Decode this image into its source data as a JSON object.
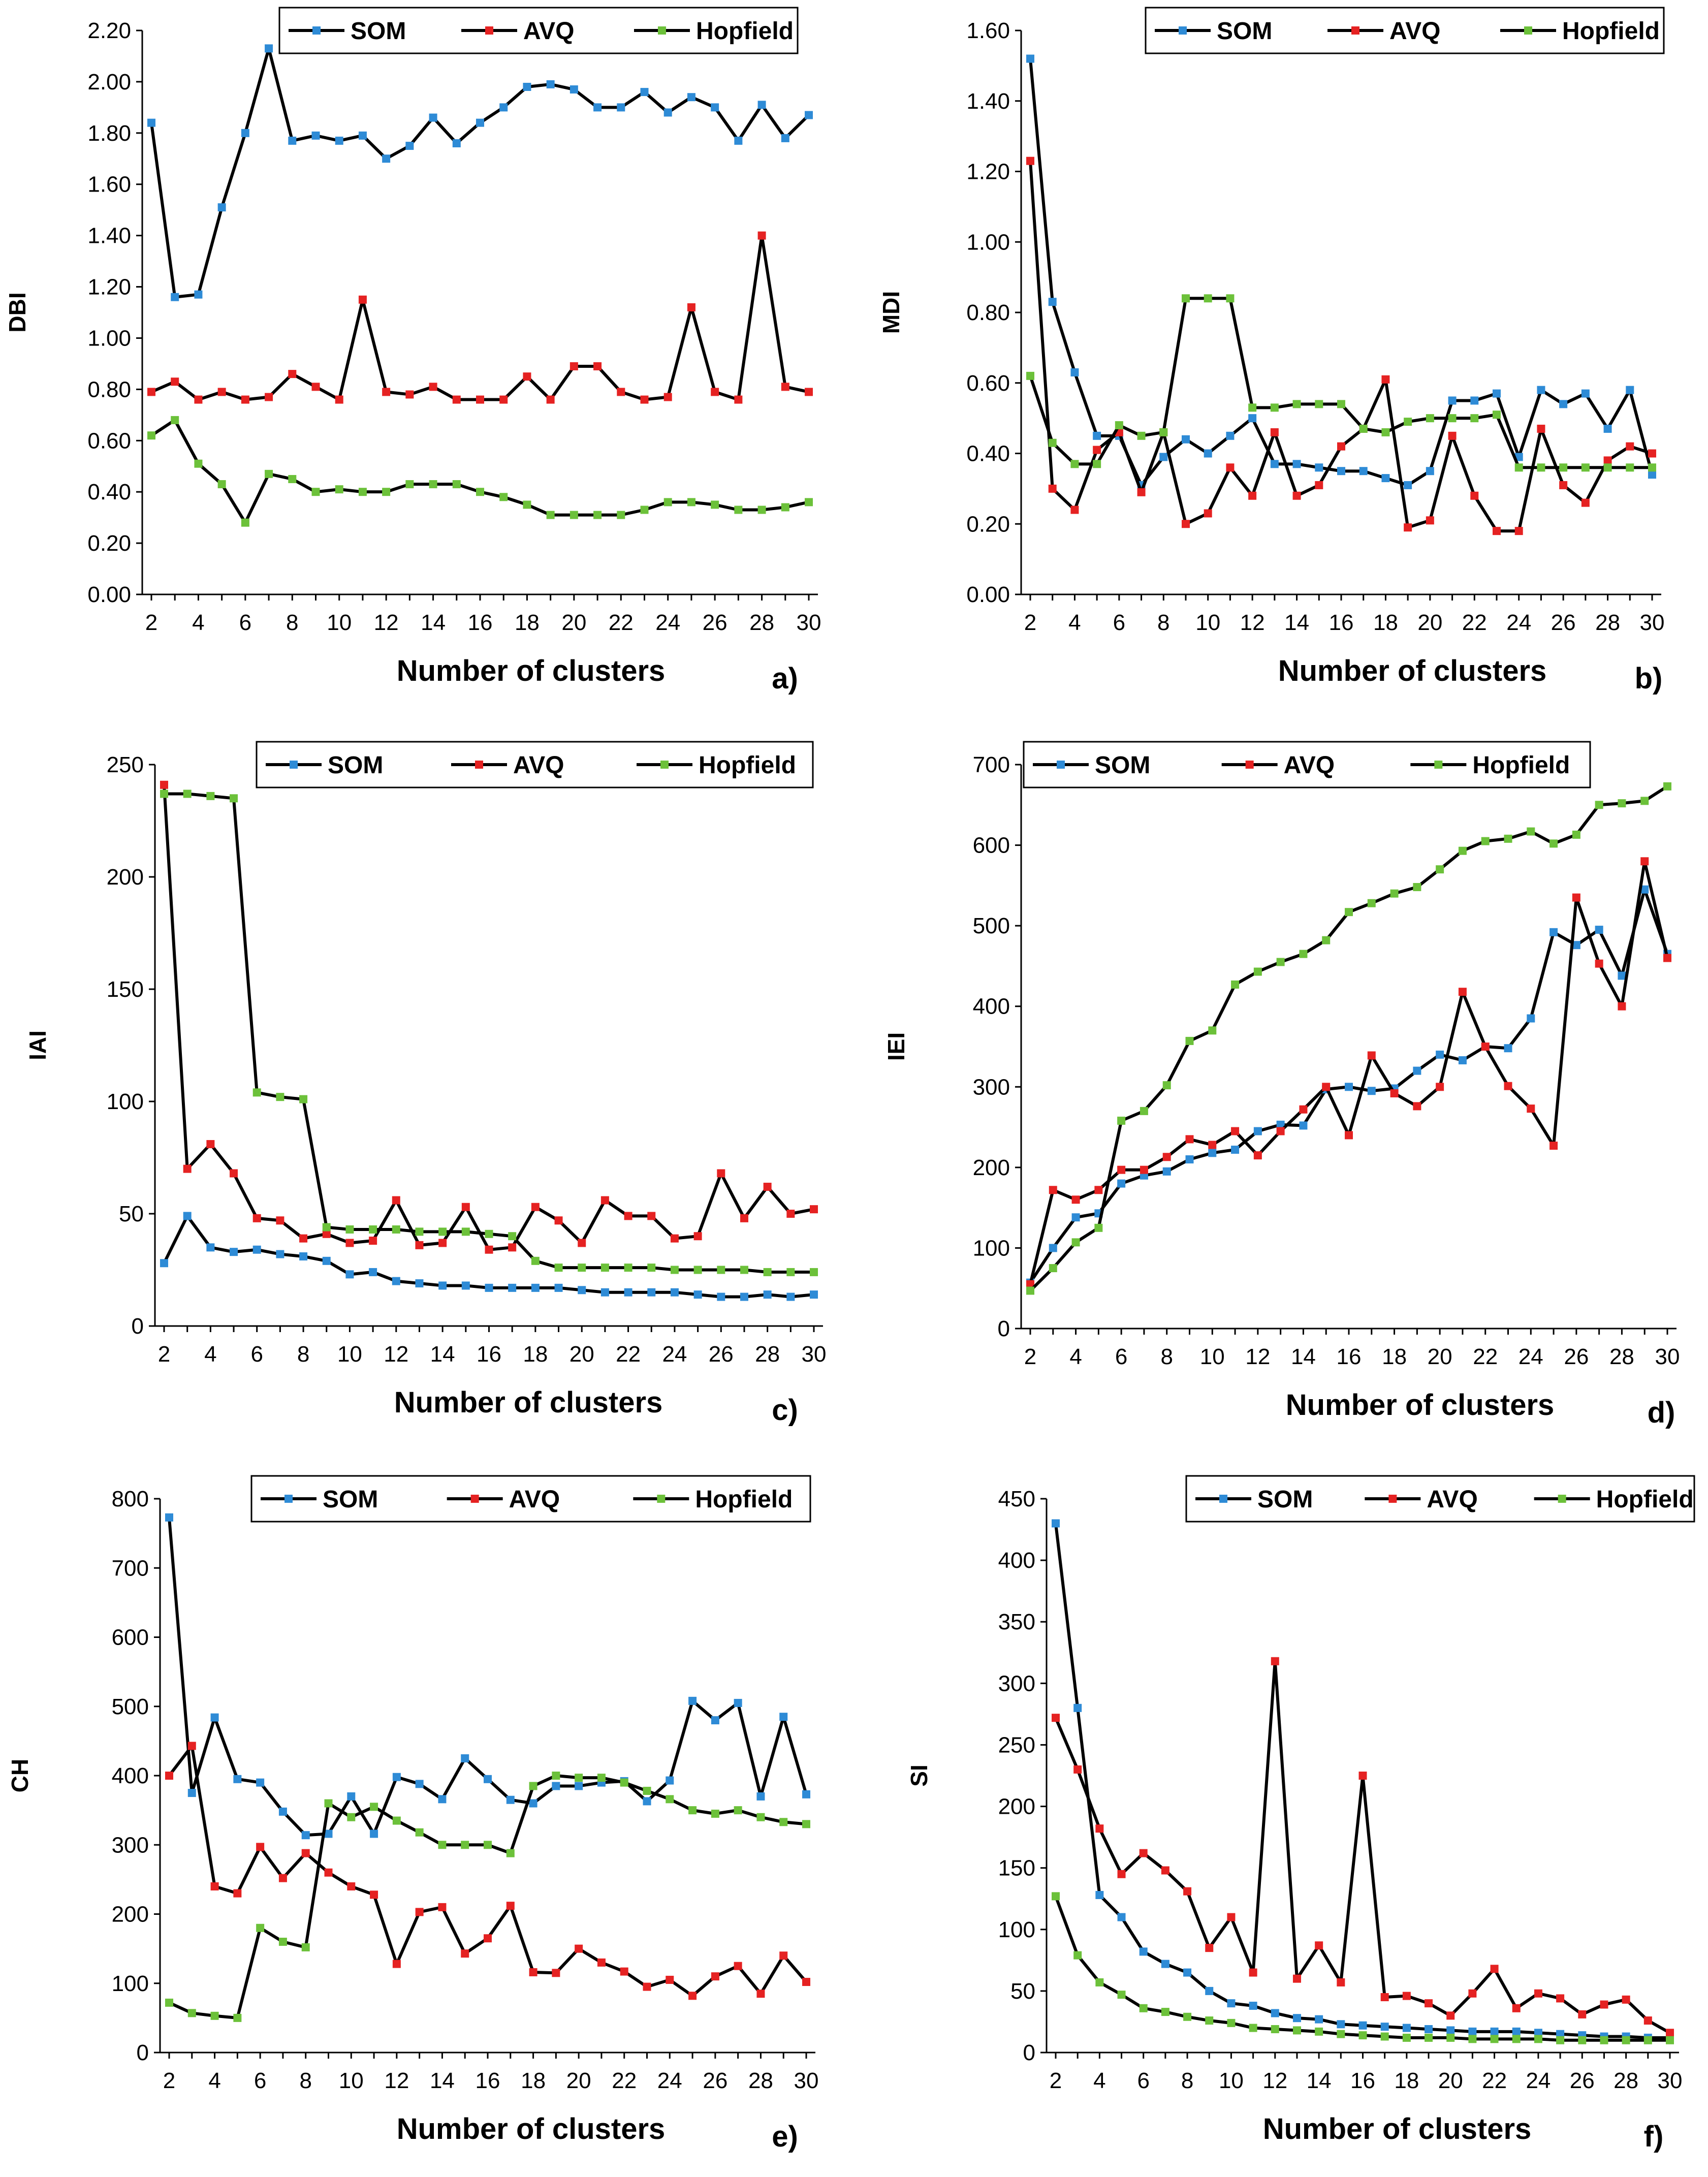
{
  "colors": {
    "line": "#000000",
    "SOM": "#2e8bd6",
    "AVQ": "#e52222",
    "Hopfield": "#6cc13a"
  },
  "chart_data": [
    {
      "type": "line",
      "panel_label": "a)",
      "ylabel": "DBI",
      "xlabel": "Number of clusters",
      "x": [
        2,
        3,
        4,
        5,
        6,
        7,
        8,
        9,
        10,
        11,
        12,
        13,
        14,
        15,
        16,
        17,
        18,
        19,
        20,
        21,
        22,
        23,
        24,
        25,
        26,
        27,
        28,
        29,
        30
      ],
      "xticks": [
        2,
        4,
        6,
        8,
        10,
        12,
        14,
        16,
        18,
        20,
        22,
        24,
        26,
        28,
        30
      ],
      "ylim": [
        0,
        2.2
      ],
      "yticks": [
        "0.00",
        "0.20",
        "0.40",
        "0.60",
        "0.80",
        "1.00",
        "1.20",
        "1.40",
        "1.60",
        "1.80",
        "2.00",
        "2.20"
      ],
      "legend": "top",
      "series": [
        {
          "name": "SOM",
          "values": [
            1.84,
            1.16,
            1.17,
            1.51,
            1.8,
            2.13,
            1.77,
            1.79,
            1.77,
            1.79,
            1.7,
            1.75,
            1.86,
            1.76,
            1.84,
            1.9,
            1.98,
            1.99,
            1.97,
            1.9,
            1.9,
            1.96,
            1.88,
            1.94,
            1.9,
            1.77,
            1.91,
            1.78,
            1.87
          ]
        },
        {
          "name": "AVQ",
          "values": [
            0.79,
            0.83,
            0.76,
            0.79,
            0.76,
            0.77,
            0.86,
            0.81,
            0.76,
            1.15,
            0.79,
            0.78,
            0.81,
            0.76,
            0.76,
            0.76,
            0.85,
            0.76,
            0.89,
            0.89,
            0.79,
            0.76,
            0.77,
            1.12,
            0.79,
            0.76,
            1.4,
            0.81,
            0.79
          ]
        },
        {
          "name": "Hopfield",
          "values": [
            0.62,
            0.68,
            0.51,
            0.43,
            0.28,
            0.47,
            0.45,
            0.4,
            0.41,
            0.4,
            0.4,
            0.43,
            0.43,
            0.43,
            0.4,
            0.38,
            0.35,
            0.31,
            0.31,
            0.31,
            0.31,
            0.33,
            0.36,
            0.36,
            0.35,
            0.33,
            0.33,
            0.34,
            0.36
          ]
        }
      ]
    },
    {
      "type": "line",
      "panel_label": "b)",
      "ylabel": "MDI",
      "xlabel": "Number of clusters",
      "x": [
        2,
        3,
        4,
        5,
        6,
        7,
        8,
        9,
        10,
        11,
        12,
        13,
        14,
        15,
        16,
        17,
        18,
        19,
        20,
        21,
        22,
        23,
        24,
        25,
        26,
        27,
        28,
        29,
        30
      ],
      "xticks": [
        2,
        4,
        6,
        8,
        10,
        12,
        14,
        16,
        18,
        20,
        22,
        24,
        26,
        28,
        30
      ],
      "ylim": [
        0,
        1.6
      ],
      "yticks": [
        "0.00",
        "0.20",
        "0.40",
        "0.60",
        "0.80",
        "1.00",
        "1.20",
        "1.40",
        "1.60"
      ],
      "legend": "top-right",
      "series": [
        {
          "name": "SOM",
          "values": [
            1.52,
            0.83,
            0.63,
            0.45,
            0.45,
            0.31,
            0.39,
            0.44,
            0.4,
            0.45,
            0.5,
            0.37,
            0.37,
            0.36,
            0.35,
            0.35,
            0.33,
            0.31,
            0.35,
            0.55,
            0.55,
            0.57,
            0.39,
            0.58,
            0.54,
            0.57,
            0.47,
            0.58,
            0.34
          ]
        },
        {
          "name": "AVQ",
          "values": [
            1.23,
            0.3,
            0.24,
            0.41,
            0.46,
            0.29,
            0.46,
            0.2,
            0.23,
            0.36,
            0.28,
            0.46,
            0.28,
            0.31,
            0.42,
            0.47,
            0.61,
            0.19,
            0.21,
            0.45,
            0.28,
            0.18,
            0.18,
            0.47,
            0.31,
            0.26,
            0.38,
            0.42,
            0.4
          ]
        },
        {
          "name": "Hopfield",
          "values": [
            0.62,
            0.43,
            0.37,
            0.37,
            0.48,
            0.45,
            0.46,
            0.84,
            0.84,
            0.84,
            0.53,
            0.53,
            0.54,
            0.54,
            0.54,
            0.47,
            0.46,
            0.49,
            0.5,
            0.5,
            0.5,
            0.51,
            0.36,
            0.36,
            0.36,
            0.36,
            0.36,
            0.36,
            0.36
          ]
        }
      ]
    },
    {
      "type": "line",
      "panel_label": "c)",
      "ylabel": "IAI",
      "xlabel": "Number of clusters",
      "x": [
        2,
        3,
        4,
        5,
        6,
        7,
        8,
        9,
        10,
        11,
        12,
        13,
        14,
        15,
        16,
        17,
        18,
        19,
        20,
        21,
        22,
        23,
        24,
        25,
        26,
        27,
        28,
        29,
        30
      ],
      "xticks": [
        2,
        4,
        6,
        8,
        10,
        12,
        14,
        16,
        18,
        20,
        22,
        24,
        26,
        28,
        30
      ],
      "ylim": [
        0,
        250
      ],
      "yticks": [
        "0",
        "50",
        "100",
        "150",
        "200",
        "250"
      ],
      "legend": "top-right",
      "series": [
        {
          "name": "SOM",
          "values": [
            28,
            49,
            35,
            33,
            34,
            32,
            31,
            29,
            23,
            24,
            20,
            19,
            18,
            18,
            17,
            17,
            17,
            17,
            16,
            15,
            15,
            15,
            15,
            14,
            13,
            13,
            14,
            13,
            14
          ]
        },
        {
          "name": "AVQ",
          "values": [
            241,
            70,
            81,
            68,
            48,
            47,
            39,
            41,
            37,
            38,
            56,
            36,
            37,
            53,
            34,
            35,
            53,
            47,
            37,
            56,
            49,
            49,
            39,
            40,
            68,
            48,
            62,
            50,
            52
          ]
        },
        {
          "name": "Hopfield",
          "values": [
            237,
            237,
            236,
            235,
            104,
            102,
            101,
            44,
            43,
            43,
            43,
            42,
            42,
            42,
            41,
            40,
            29,
            26,
            26,
            26,
            26,
            26,
            25,
            25,
            25,
            25,
            24,
            24,
            24
          ]
        }
      ]
    },
    {
      "type": "line",
      "panel_label": "d)",
      "ylabel": "IEI",
      "xlabel": "Number of clusters",
      "x": [
        2,
        3,
        4,
        5,
        6,
        7,
        8,
        9,
        10,
        11,
        12,
        13,
        14,
        15,
        16,
        17,
        18,
        19,
        20,
        21,
        22,
        23,
        24,
        25,
        26,
        27,
        28,
        29,
        30
      ],
      "xticks": [
        2,
        4,
        6,
        8,
        10,
        12,
        14,
        16,
        18,
        20,
        22,
        24,
        26,
        28,
        30
      ],
      "ylim": [
        0,
        700
      ],
      "yticks": [
        "0",
        "100",
        "200",
        "300",
        "400",
        "500",
        "600",
        "700"
      ],
      "legend": "top",
      "series": [
        {
          "name": "SOM",
          "values": [
            57,
            100,
            138,
            143,
            180,
            190,
            195,
            210,
            218,
            222,
            245,
            253,
            252,
            297,
            300,
            295,
            298,
            320,
            340,
            333,
            350,
            348,
            385,
            492,
            476,
            495,
            438,
            545,
            465
          ]
        },
        {
          "name": "AVQ",
          "values": [
            55,
            172,
            160,
            172,
            197,
            197,
            213,
            235,
            228,
            245,
            215,
            245,
            272,
            300,
            240,
            339,
            292,
            276,
            300,
            418,
            350,
            301,
            273,
            227,
            535,
            453,
            400,
            580,
            460
          ]
        },
        {
          "name": "Hopfield",
          "values": [
            47,
            75,
            107,
            125,
            258,
            270,
            302,
            357,
            370,
            427,
            443,
            455,
            465,
            482,
            517,
            528,
            540,
            548,
            570,
            593,
            605,
            608,
            617,
            602,
            613,
            650,
            652,
            655,
            673
          ]
        }
      ]
    },
    {
      "type": "line",
      "panel_label": "e)",
      "ylabel": "CH",
      "xlabel": "Number of clusters",
      "x": [
        2,
        3,
        4,
        5,
        6,
        7,
        8,
        9,
        10,
        11,
        12,
        13,
        14,
        15,
        16,
        17,
        18,
        19,
        20,
        21,
        22,
        23,
        24,
        25,
        26,
        27,
        28,
        29,
        30
      ],
      "xticks": [
        2,
        4,
        6,
        8,
        10,
        12,
        14,
        16,
        18,
        20,
        22,
        24,
        26,
        28,
        30
      ],
      "ylim": [
        0,
        800
      ],
      "yticks": [
        "0",
        "100",
        "200",
        "300",
        "400",
        "500",
        "600",
        "700",
        "800"
      ],
      "legend": "top-right",
      "series": [
        {
          "name": "SOM",
          "values": [
            773,
            375,
            484,
            395,
            390,
            348,
            314,
            316,
            370,
            316,
            398,
            388,
            366,
            425,
            395,
            365,
            360,
            385,
            385,
            390,
            392,
            363,
            393,
            508,
            480,
            505,
            370,
            485,
            373
          ]
        },
        {
          "name": "AVQ",
          "values": [
            400,
            443,
            240,
            230,
            297,
            252,
            288,
            260,
            240,
            228,
            128,
            203,
            210,
            143,
            165,
            212,
            116,
            115,
            150,
            130,
            117,
            95,
            105,
            82,
            110,
            125,
            85,
            140,
            102
          ]
        },
        {
          "name": "Hopfield",
          "values": [
            72,
            57,
            53,
            50,
            180,
            160,
            152,
            360,
            340,
            355,
            335,
            318,
            300,
            300,
            300,
            288,
            385,
            400,
            397,
            397,
            390,
            378,
            366,
            350,
            345,
            350,
            340,
            333,
            330
          ]
        }
      ]
    },
    {
      "type": "line",
      "panel_label": "f)",
      "ylabel": "SI",
      "xlabel": "Number of clusters",
      "x": [
        2,
        3,
        4,
        5,
        6,
        7,
        8,
        9,
        10,
        11,
        12,
        13,
        14,
        15,
        16,
        17,
        18,
        19,
        20,
        21,
        22,
        23,
        24,
        25,
        26,
        27,
        28,
        29,
        30
      ],
      "xticks": [
        2,
        4,
        6,
        8,
        10,
        12,
        14,
        16,
        18,
        20,
        22,
        24,
        26,
        28,
        30
      ],
      "ylim": [
        0,
        450
      ],
      "yticks": [
        "0",
        "50",
        "100",
        "150",
        "200",
        "250",
        "300",
        "350",
        "400",
        "450"
      ],
      "legend": "top-right",
      "series": [
        {
          "name": "SOM",
          "values": [
            430,
            280,
            128,
            110,
            82,
            72,
            65,
            50,
            40,
            38,
            32,
            28,
            27,
            23,
            22,
            21,
            20,
            19,
            18,
            17,
            17,
            17,
            16,
            15,
            14,
            13,
            13,
            12,
            12
          ]
        },
        {
          "name": "AVQ",
          "values": [
            272,
            230,
            182,
            145,
            162,
            148,
            131,
            85,
            110,
            65,
            318,
            60,
            87,
            57,
            225,
            45,
            46,
            40,
            30,
            48,
            68,
            36,
            48,
            44,
            31,
            39,
            43,
            26,
            16
          ]
        },
        {
          "name": "Hopfield",
          "values": [
            127,
            79,
            57,
            47,
            36,
            33,
            29,
            26,
            24,
            20,
            19,
            18,
            17,
            15,
            14,
            13,
            12,
            12,
            12,
            11,
            11,
            11,
            11,
            10,
            10,
            10,
            10,
            10,
            10
          ]
        }
      ]
    }
  ]
}
